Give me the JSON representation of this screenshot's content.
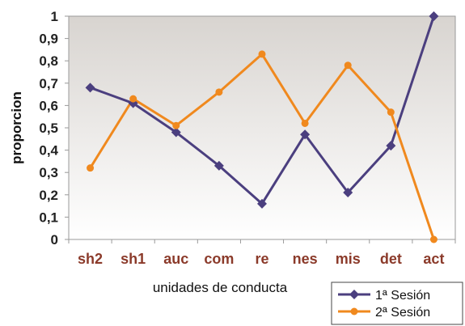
{
  "chart_data": {
    "type": "line",
    "categories": [
      "sh2",
      "sh1",
      "auc",
      "com",
      "re",
      "nes",
      "mis",
      "det",
      "act"
    ],
    "series": [
      {
        "name": "1ª Sesión",
        "color": "#4b3f7f",
        "marker": "diamond",
        "values": [
          0.68,
          0.61,
          0.48,
          0.33,
          0.16,
          0.47,
          0.21,
          0.42,
          1.0
        ]
      },
      {
        "name": "2ª Sesión",
        "color": "#f0891e",
        "marker": "circle",
        "values": [
          0.32,
          0.63,
          0.51,
          0.66,
          0.83,
          0.52,
          0.78,
          0.57,
          0.0
        ]
      }
    ],
    "xlabel": "unidades de conducta",
    "ylabel": "proporcion",
    "ylim": [
      0,
      1
    ],
    "yticks": [
      "0",
      "0,1",
      "0,2",
      "0,3",
      "0,4",
      "0,5",
      "0,6",
      "0,7",
      "0,8",
      "0,9",
      "1"
    ],
    "grid": false,
    "legend_position": "bottom-right",
    "colors": {
      "plot_bg_top": "#d8d4d0",
      "plot_bg_bottom": "#ffffff",
      "tick_label": "#8b3a2a"
    }
  }
}
